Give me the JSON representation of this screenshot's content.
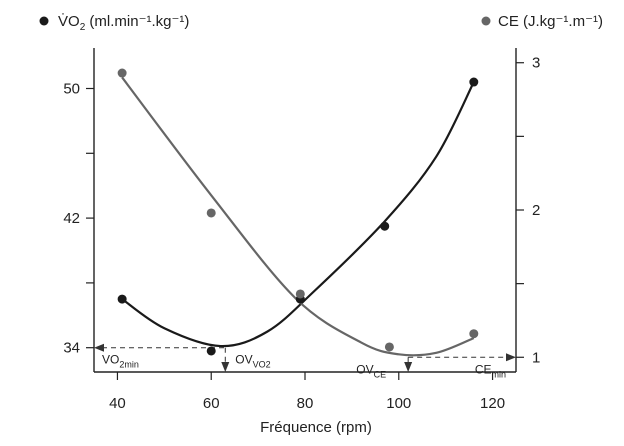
{
  "colors": {
    "vo2": "#1a1a1a",
    "ce": "#666666",
    "axis": "#222222"
  },
  "chart_data": {
    "type": "scatter",
    "xlabel": "Fréquence (rpm)",
    "xlim": [
      35,
      125
    ],
    "x_ticks": [
      40,
      60,
      80,
      100,
      120
    ],
    "left_axis": {
      "label": "V̇O",
      "label_sub": "2",
      "label_unit": " (ml.min⁻¹.kg⁻¹)",
      "ylim": [
        32.5,
        52.5
      ],
      "ticks": [
        34,
        38,
        42,
        46,
        50
      ],
      "tick_labels": [
        "34",
        "",
        "42",
        "",
        "50"
      ]
    },
    "right_axis": {
      "label": "CE (J.kg⁻¹.m⁻¹)",
      "ylim": [
        0.9,
        3.1
      ],
      "ticks": [
        1,
        1.5,
        2,
        2.5,
        3
      ],
      "tick_labels": [
        "1",
        "",
        "2",
        "",
        "3"
      ]
    },
    "series": [
      {
        "name": "V̇O2 (ml.min⁻¹.kg⁻¹)",
        "axis": "left",
        "x": [
          41,
          60,
          79,
          97,
          116
        ],
        "y": [
          37.0,
          33.8,
          37.0,
          41.5,
          50.4
        ],
        "fit": [
          [
            41,
            37.0
          ],
          [
            50,
            35.2
          ],
          [
            62,
            34.1
          ],
          [
            72,
            35.0
          ],
          [
            82,
            37.5
          ],
          [
            97,
            41.8
          ],
          [
            108,
            45.8
          ],
          [
            116,
            50.4
          ]
        ]
      },
      {
        "name": "CE (J.kg⁻¹.m⁻¹)",
        "axis": "right",
        "x": [
          41,
          60,
          79,
          98,
          116
        ],
        "y": [
          2.93,
          1.98,
          1.43,
          1.07,
          1.16
        ],
        "fit": [
          [
            41,
            2.9
          ],
          [
            60,
            2.1
          ],
          [
            78,
            1.4
          ],
          [
            92,
            1.1
          ],
          [
            100,
            1.02
          ],
          [
            108,
            1.03
          ],
          [
            116,
            1.13
          ]
        ]
      }
    ],
    "annotations": {
      "vo2min": {
        "label": "VO",
        "sub": "2min",
        "left_y": 34,
        "x_end": 63
      },
      "ovvo2": {
        "label": "OV",
        "sub": "VO2",
        "x": 63
      },
      "ovce": {
        "label": "OV",
        "sub": "CE",
        "x": 102
      },
      "cemin": {
        "label": "CE",
        "sub": "min",
        "right_y": 1,
        "x_start": 102
      }
    }
  }
}
